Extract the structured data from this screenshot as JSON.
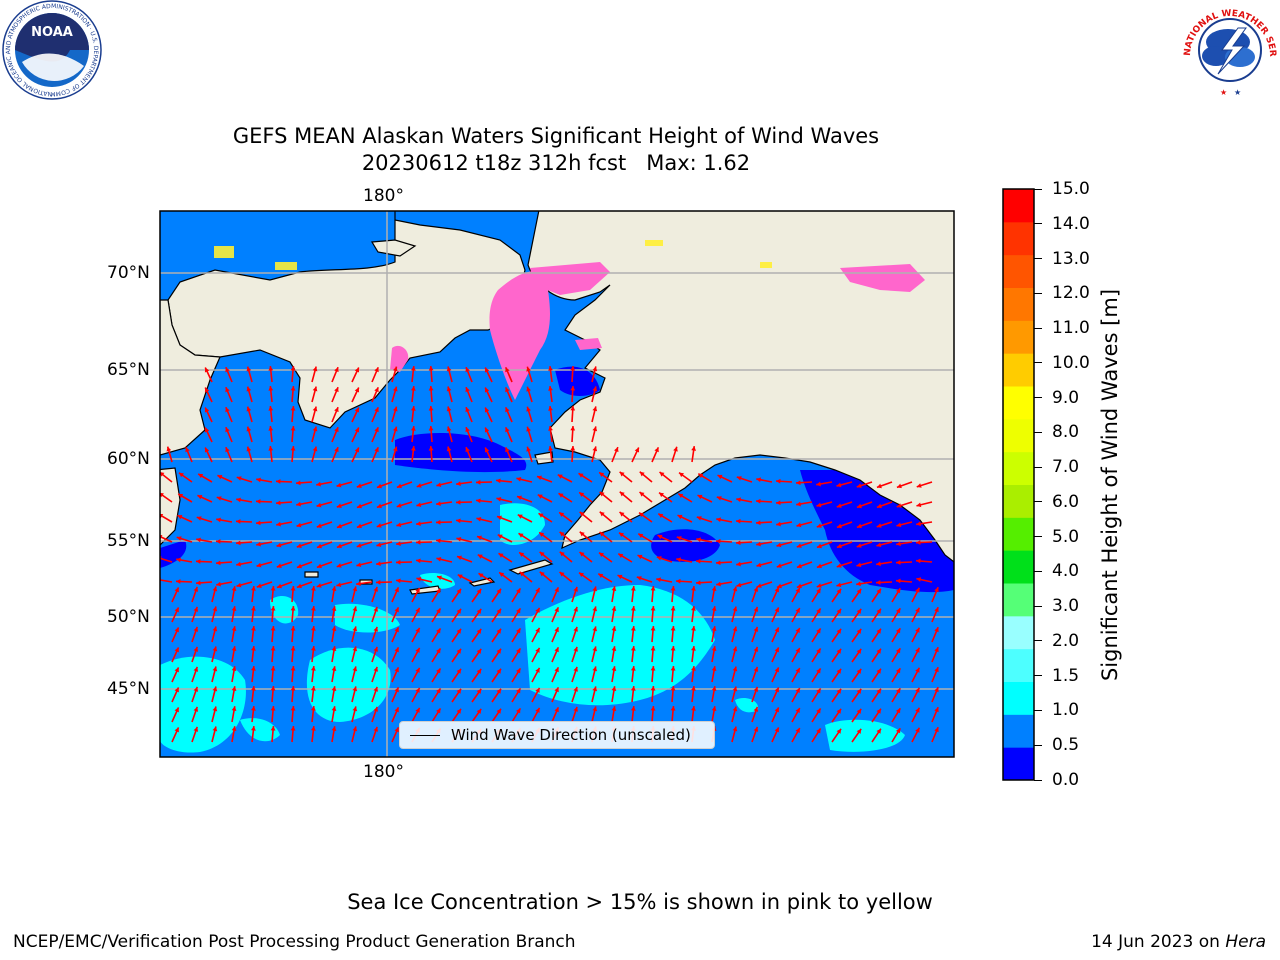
{
  "logos": {
    "noaa": {
      "wordmark": "NOAA",
      "ring_text": "NATIONAL OCEANIC AND ATMOSPHERIC ADMINISTRATION · U.S. DEPARTMENT OF COMMERCE"
    },
    "nws": {
      "ring_text": "NATIONAL WEATHER SERVICE"
    }
  },
  "title": {
    "line1": "GEFS MEAN Alaskan Waters Significant Height of Wind Waves",
    "line2": "20230612 t18z 312h fcst   Max: 1.62"
  },
  "map": {
    "lon_label_top": "180°",
    "lon_label_bottom": "180°",
    "lat_labels": [
      "70°N",
      "65°N",
      "60°N",
      "55°N",
      "50°N",
      "45°N"
    ],
    "legend_label": "Wind Wave Direction (unscaled)",
    "colors": {
      "land": "#efedde",
      "water_0_05": "#0000ff",
      "water_05_1": "#0080ff",
      "water_1_15": "#00ffff",
      "ice": "#ff66cc",
      "arrow": "#ff0000",
      "grid": "#b0b0b0"
    }
  },
  "colorbar": {
    "label": "Significant Height of Wind Waves [m]",
    "ticks": [
      "15.0",
      "14.0",
      "13.0",
      "12.0",
      "11.0",
      "10.0",
      "9.0",
      "8.0",
      "7.0",
      "6.0",
      "5.0",
      "4.0",
      "3.0",
      "2.0",
      "1.5",
      "1.0",
      "0.5",
      "0.0"
    ],
    "colors_bottom_to_top": [
      "#0000ff",
      "#0080ff",
      "#00ffff",
      "#4dffff",
      "#99ffff",
      "#55ff77",
      "#00e01a",
      "#55ee00",
      "#aaee00",
      "#ccff00",
      "#eeff00",
      "#ffff00",
      "#ffcc00",
      "#ff9900",
      "#ff7700",
      "#ff5500",
      "#ff3300",
      "#ff0000"
    ]
  },
  "footer": {
    "ice_note": "Sea Ice Concentration > 15% is shown in pink to yellow",
    "left": "NCEP/EMC/Verification Post Processing Product Generation Branch",
    "right_date": "14 Jun 2023 on ",
    "right_host": "Hera"
  }
}
